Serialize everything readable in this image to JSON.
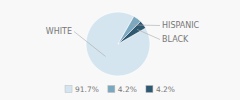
{
  "chart_data": {
    "type": "pie",
    "categories": [
      "WHITE",
      "HISPANIC",
      "BLACK"
    ],
    "values": [
      91.7,
      4.2,
      4.2
    ],
    "value_labels": [
      "91.7%",
      "4.2%",
      "4.2%"
    ],
    "colors": [
      "#d5e5ef",
      "#7ca8bf",
      "#2e5970"
    ],
    "legend": "bottom"
  }
}
